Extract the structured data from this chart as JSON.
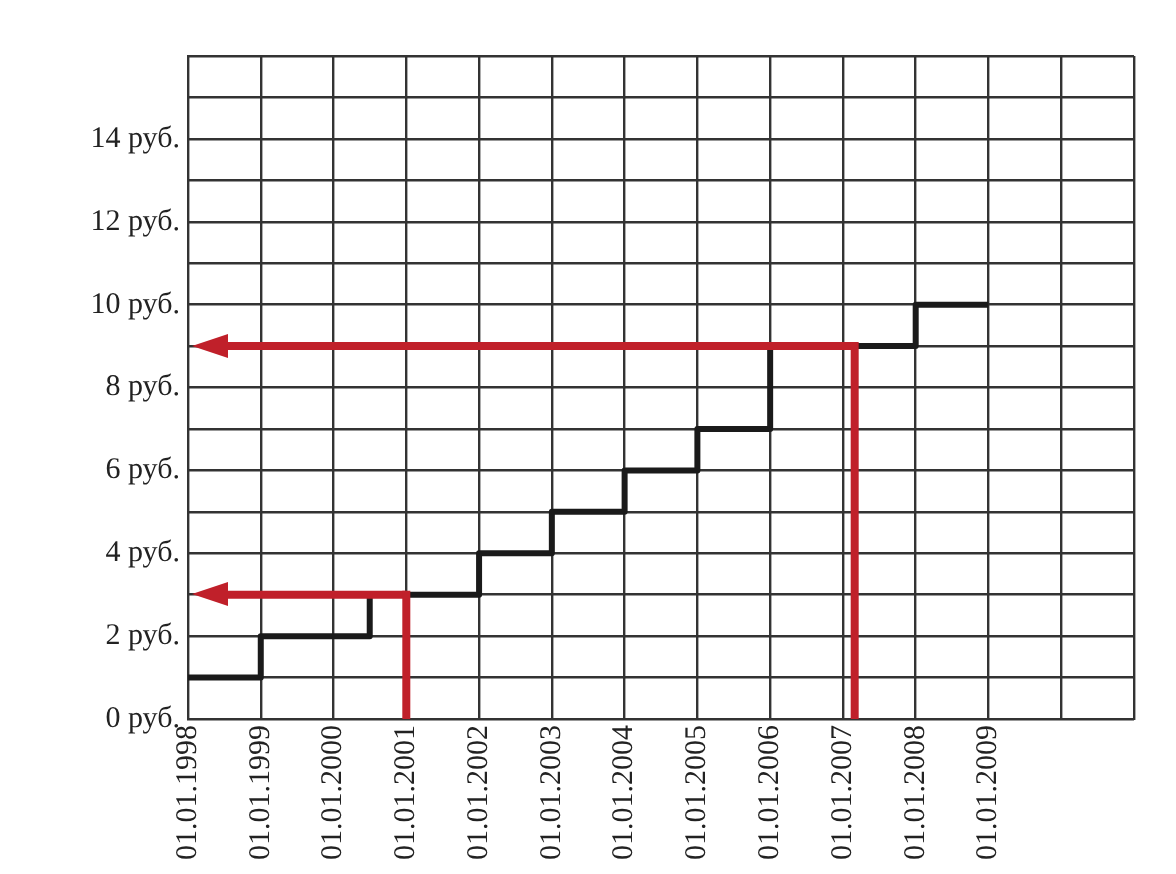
{
  "chart_data": {
    "type": "step",
    "x": [
      "1998-01-01",
      "1999-01-01",
      "2000-07-01",
      "2002-01-01",
      "2003-01-01",
      "2004-01-01",
      "2005-01-01",
      "2006-01-01",
      "2008-01-01",
      "2009-01-01"
    ],
    "values": [
      1,
      2,
      3,
      4,
      5,
      6,
      7,
      9,
      10,
      10
    ],
    "color": "#1a1a1a",
    "xlim": [
      "1998-01-01",
      "2011-01-01"
    ],
    "xticks": [
      {
        "value": "1998-01-01",
        "label": "01.01.1998"
      },
      {
        "value": "1999-01-01",
        "label": "01.01.1999"
      },
      {
        "value": "2000-01-01",
        "label": "01.01.2000"
      },
      {
        "value": "2001-01-01",
        "label": "01.01.2001"
      },
      {
        "value": "2002-01-01",
        "label": "01.01.2002"
      },
      {
        "value": "2003-01-01",
        "label": "01.01.2003"
      },
      {
        "value": "2004-01-01",
        "label": "01.01.2004"
      },
      {
        "value": "2005-01-01",
        "label": "01.01.2005"
      },
      {
        "value": "2006-01-01",
        "label": "01.01.2006"
      },
      {
        "value": "2007-01-01",
        "label": "01.01.2007"
      },
      {
        "value": "2008-01-01",
        "label": "01.01.2008"
      },
      {
        "value": "2009-01-01",
        "label": "01.01.2009"
      },
      {
        "value": "2010-01-01",
        "label": null
      },
      {
        "value": "2011-01-01",
        "label": null
      }
    ],
    "ylim": [
      0,
      16
    ],
    "yticks": [
      {
        "value": 0,
        "label": "0 руб."
      },
      {
        "value": 1,
        "label": null
      },
      {
        "value": 2,
        "label": "2 руб."
      },
      {
        "value": 3,
        "label": null
      },
      {
        "value": 4,
        "label": "4 руб."
      },
      {
        "value": 5,
        "label": null
      },
      {
        "value": 6,
        "label": "6 руб."
      },
      {
        "value": 7,
        "label": null
      },
      {
        "value": 8,
        "label": "8 руб."
      },
      {
        "value": 9,
        "label": null
      },
      {
        "value": 10,
        "label": "10 руб."
      },
      {
        "value": 11,
        "label": null
      },
      {
        "value": 12,
        "label": "12 руб."
      },
      {
        "value": 13,
        "label": null
      },
      {
        "value": 14,
        "label": "14 руб."
      },
      {
        "value": 15,
        "label": null
      },
      {
        "value": 16,
        "label": null
      }
    ],
    "grid": true,
    "ref_lines": [
      {
        "axis": "y",
        "value": 3,
        "color": "#c0202a"
      },
      {
        "axis": "y",
        "value": 9,
        "color": "#c0202a"
      },
      {
        "axis": "x",
        "value": "2001-01-01",
        "color": "#c0202a"
      },
      {
        "axis": "x",
        "value": "2007-03-01",
        "color": "#c0202a"
      }
    ]
  }
}
